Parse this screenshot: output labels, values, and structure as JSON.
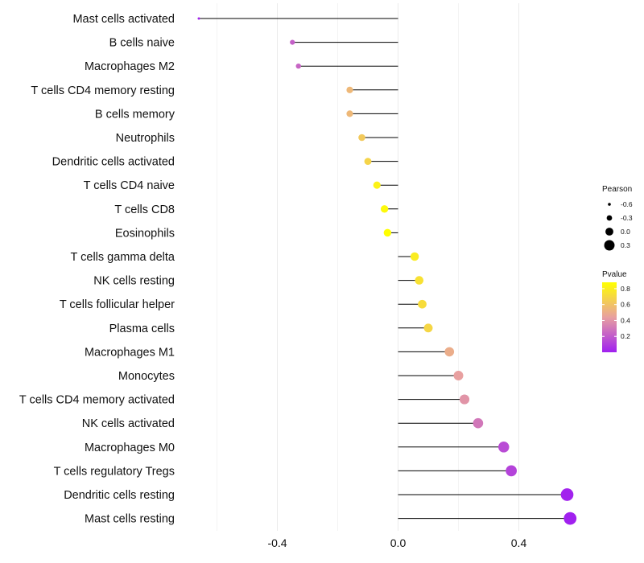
{
  "chart_data": {
    "type": "lollipop",
    "title": "",
    "xlabel": "",
    "ylabel": "",
    "xlim": [
      -0.66,
      0.6
    ],
    "x_ticks": [
      -0.4,
      0.0,
      0.4
    ],
    "x_tick_labels": [
      "-0.4",
      "0.0",
      "0.4"
    ],
    "grid": true,
    "categories": [
      "Mast cells activated",
      "B cells naive",
      "Macrophages M2",
      "T cells CD4 memory resting",
      "B cells memory",
      "Neutrophils",
      "Dendritic cells activated",
      "T cells CD4 naive",
      "T cells CD8",
      "Eosinophils",
      "T cells gamma delta",
      "NK cells resting",
      "T cells follicular helper",
      "Plasma cells",
      "Macrophages M1",
      "Monocytes",
      "T cells CD4 memory activated",
      "NK cells activated",
      "Macrophages M0",
      "T cells regulatory  Tregs ",
      "Dendritic cells resting",
      "Mast cells resting"
    ],
    "pearson": [
      -0.66,
      -0.35,
      -0.33,
      -0.16,
      -0.16,
      -0.12,
      -0.1,
      -0.07,
      -0.045,
      -0.035,
      0.055,
      0.07,
      0.08,
      0.1,
      0.17,
      0.2,
      0.22,
      0.265,
      0.35,
      0.375,
      0.56,
      0.57
    ],
    "pvalue": [
      0.02,
      0.22,
      0.24,
      0.55,
      0.55,
      0.63,
      0.68,
      0.82,
      0.85,
      0.88,
      0.79,
      0.74,
      0.72,
      0.69,
      0.5,
      0.44,
      0.4,
      0.3,
      0.15,
      0.12,
      0.01,
      0.005
    ],
    "legend": {
      "position": "right",
      "size_title": "Pearson",
      "size_values": [
        -0.6,
        -0.3,
        0.0,
        0.3
      ],
      "size_labels": [
        "-0.6",
        "-0.3",
        "0.0",
        "0.3"
      ],
      "color_title": "Pvalue",
      "color_values": [
        0.8,
        0.6,
        0.4,
        0.2
      ],
      "color_labels": [
        "0.8",
        "0.6",
        "0.4",
        "0.2"
      ],
      "color_range": [
        0.0,
        0.88
      ],
      "color_low": "#A020F0",
      "color_mid": "#E8A0A0",
      "color_high": "#FFFF00"
    },
    "stem_color": "#000000",
    "grid_color": "#EBEBEB"
  }
}
